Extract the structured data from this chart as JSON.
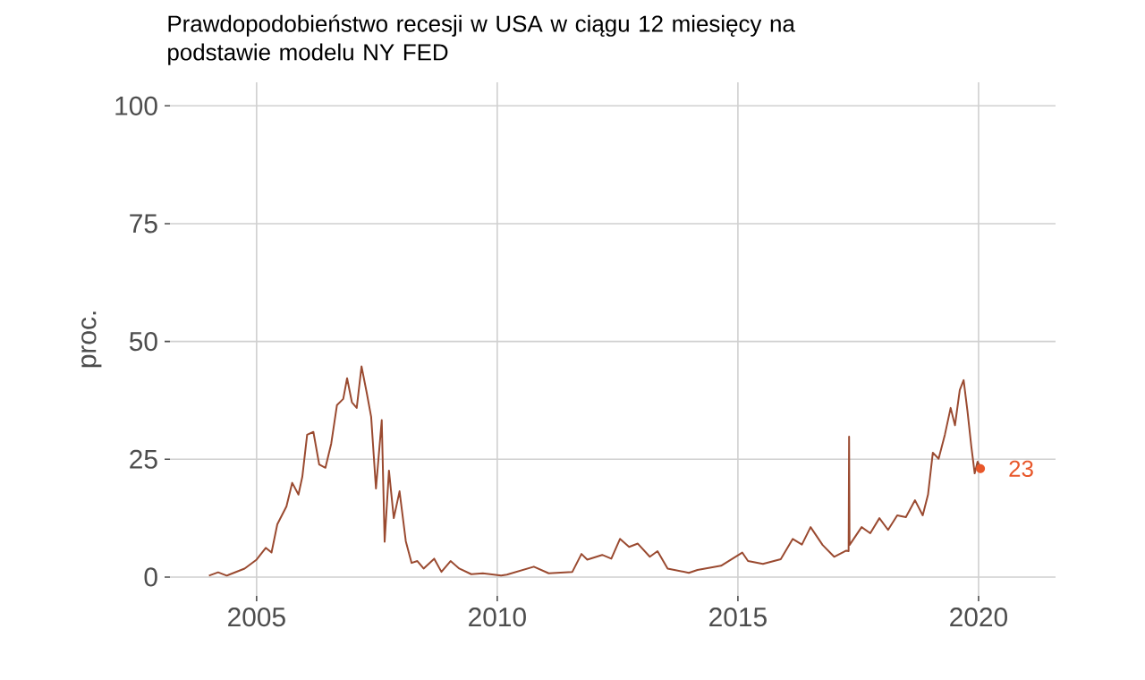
{
  "chart_data": {
    "type": "line",
    "title": "Prawdopodobieństwo recesji w USA w ciągu 12 miesięcy na podstawie modelu NY FED",
    "ylabel": "proc.",
    "x": [
      2004.01,
      2004.2,
      2004.38,
      2004.75,
      2005.0,
      2005.19,
      2005.31,
      2005.43,
      2005.62,
      2005.74,
      2005.87,
      2005.95,
      2006.05,
      2006.18,
      2006.3,
      2006.43,
      2006.55,
      2006.67,
      2006.8,
      2006.88,
      2006.98,
      2007.08,
      2007.18,
      2007.29,
      2007.38,
      2007.48,
      2007.6,
      2007.66,
      2007.75,
      2007.85,
      2007.97,
      2008.1,
      2008.22,
      2008.34,
      2008.47,
      2008.69,
      2008.84,
      2009.03,
      2009.21,
      2009.46,
      2009.7,
      2010.08,
      2010.2,
      2010.76,
      2011.07,
      2011.56,
      2011.75,
      2011.87,
      2012.18,
      2012.37,
      2012.55,
      2012.74,
      2012.92,
      2013.17,
      2013.33,
      2013.54,
      2013.98,
      2014.16,
      2014.65,
      2015.09,
      2015.21,
      2015.52,
      2015.89,
      2016.14,
      2016.33,
      2016.51,
      2016.76,
      2017.0,
      2017.25,
      2017.3,
      2017.31,
      2017.32,
      2017.57,
      2017.75,
      2017.94,
      2018.12,
      2018.31,
      2018.49,
      2018.68,
      2018.84,
      2018.95,
      2019.05,
      2019.17,
      2019.3,
      2019.42,
      2019.51,
      2019.61,
      2019.69,
      2019.77,
      2019.85,
      2019.92,
      2019.98,
      2020.04
    ],
    "series": [
      {
        "color": "#9a4a30",
        "values": [
          0.3,
          1.0,
          0.3,
          1.8,
          3.7,
          6.2,
          5.2,
          11.2,
          15,
          20,
          17.5,
          21.3,
          30.2,
          30.8,
          23.9,
          23.2,
          28.3,
          36.5,
          37.8,
          42.2,
          37.1,
          35.9,
          44.7,
          39,
          34,
          18.8,
          33.3,
          7.5,
          22.6,
          12.5,
          18.2,
          7.6,
          3,
          3.4,
          1.8,
          3.9,
          1.1,
          3.4,
          1.8,
          0.6,
          0.8,
          0.3,
          0.5,
          2.2,
          0.8,
          1.1,
          4.9,
          3.7,
          4.7,
          3.9,
          8.1,
          6.4,
          7.1,
          4.3,
          5.5,
          1.8,
          0.9,
          1.5,
          2.4,
          5.2,
          3.4,
          2.8,
          3.8,
          8.1,
          6.9,
          10.6,
          6.8,
          4.3,
          5.6,
          5.5,
          29.8,
          6.8,
          10.6,
          9.3,
          12.5,
          10,
          13.1,
          12.7,
          16.3,
          13.1,
          17.5,
          26.4,
          25.1,
          30.2,
          35.9,
          32.2,
          39.7,
          41.8,
          35.2,
          27.7,
          22,
          24.5,
          23.2
        ]
      }
    ],
    "annotations": [
      {
        "text": "23",
        "x": 2020.04,
        "y": 23
      }
    ],
    "xlim": [
      2003.2,
      2021.6
    ],
    "ylim": [
      -4,
      105
    ],
    "xticks": [
      2005,
      2010,
      2015,
      2020
    ],
    "yticks": [
      0,
      25,
      50,
      75,
      100
    ],
    "grid": true,
    "marker": "none",
    "line_style": "solid"
  }
}
